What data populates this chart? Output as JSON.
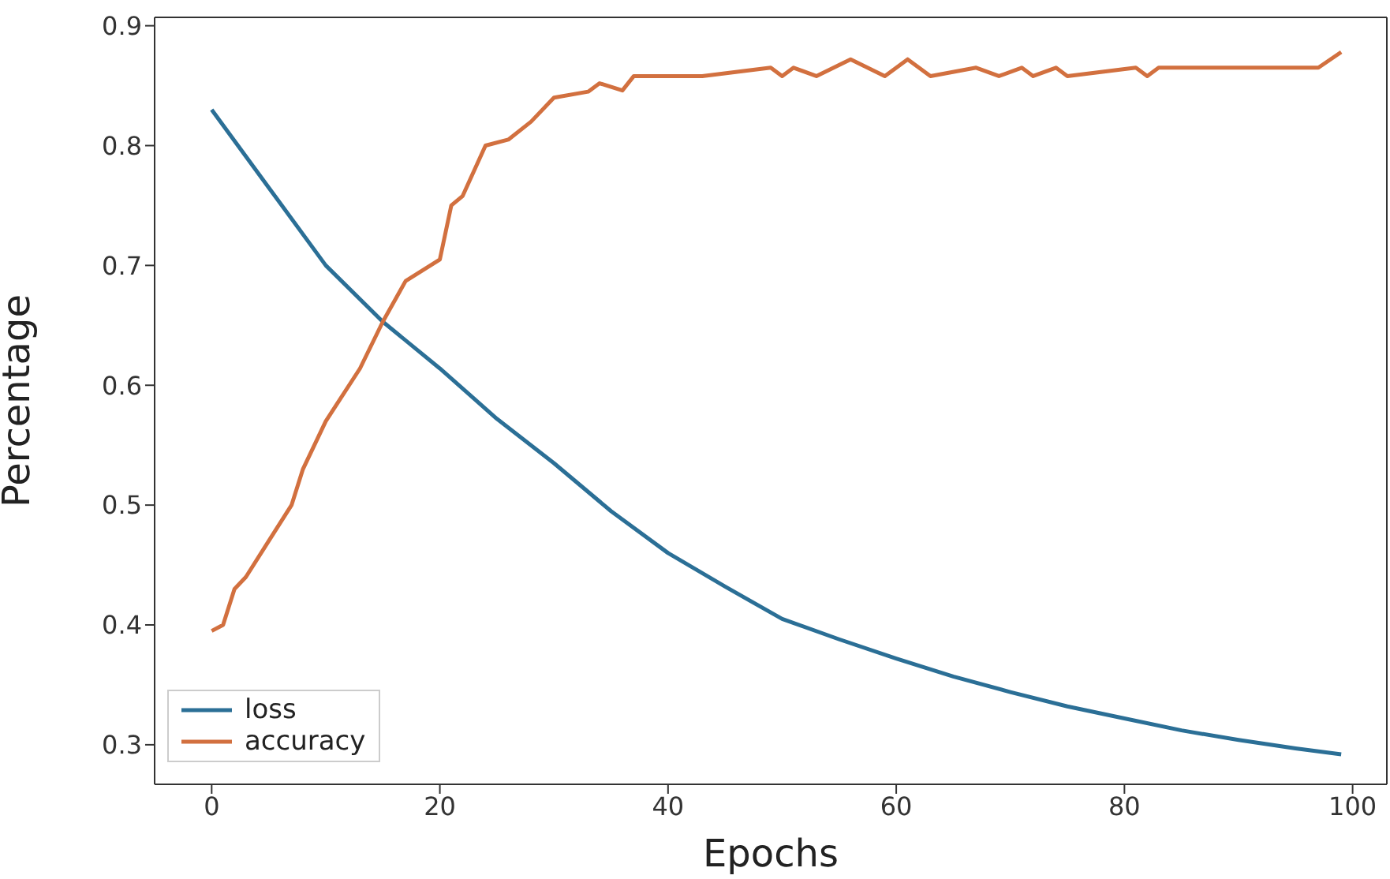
{
  "chart_data": {
    "type": "line",
    "xlabel": "Epochs",
    "ylabel": "Percentage",
    "xlim": [
      -5,
      103
    ],
    "ylim": [
      0.267,
      0.907
    ],
    "xticks": [
      0,
      20,
      40,
      60,
      80,
      100
    ],
    "yticks": [
      0.3,
      0.4,
      0.5,
      0.6,
      0.7,
      0.8,
      0.9
    ],
    "grid": false,
    "legend": "bottom left",
    "marker": "none",
    "line_style": "solid",
    "series": [
      {
        "name": "loss",
        "color": "#2b6f96",
        "x": [
          0,
          5,
          10,
          15,
          20,
          25,
          30,
          35,
          40,
          45,
          50,
          55,
          60,
          65,
          70,
          75,
          80,
          85,
          90,
          95,
          99
        ],
        "values": [
          0.83,
          0.765,
          0.7,
          0.653,
          0.614,
          0.572,
          0.535,
          0.495,
          0.46,
          0.432,
          0.405,
          0.388,
          0.372,
          0.357,
          0.344,
          0.332,
          0.322,
          0.312,
          0.304,
          0.297,
          0.292
        ]
      },
      {
        "name": "accuracy",
        "color": "#d2703f",
        "x": [
          0,
          1,
          2,
          3,
          5,
          7,
          8,
          10,
          13,
          15,
          17,
          20,
          21,
          22,
          24,
          26,
          28,
          30,
          33,
          34,
          36,
          37,
          43,
          49,
          50,
          51,
          53,
          56,
          59,
          61,
          63,
          67,
          69,
          71,
          72,
          74,
          75,
          81,
          82,
          83,
          97,
          99
        ],
        "values": [
          0.395,
          0.4,
          0.43,
          0.44,
          0.47,
          0.5,
          0.53,
          0.57,
          0.614,
          0.653,
          0.687,
          0.705,
          0.75,
          0.758,
          0.8,
          0.805,
          0.82,
          0.84,
          0.845,
          0.852,
          0.846,
          0.858,
          0.858,
          0.865,
          0.858,
          0.865,
          0.858,
          0.872,
          0.858,
          0.872,
          0.858,
          0.865,
          0.858,
          0.865,
          0.858,
          0.865,
          0.858,
          0.865,
          0.858,
          0.865,
          0.865,
          0.878
        ]
      }
    ]
  }
}
